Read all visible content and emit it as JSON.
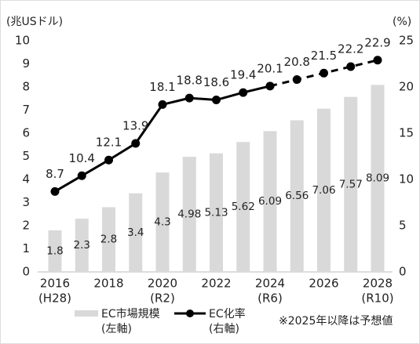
{
  "chart_data": {
    "type": "bar-line",
    "y_unit_label": "(兆USドル)",
    "y2_unit_label": "(%)",
    "categories": [
      "2016",
      null,
      "2018",
      null,
      "2020",
      null,
      "2022",
      null,
      "2024",
      null,
      "2026",
      null,
      "2028"
    ],
    "era_labels": [
      "(H28)",
      null,
      null,
      null,
      "(R2)",
      null,
      null,
      null,
      "(R6)",
      null,
      null,
      null,
      "(R10)"
    ],
    "series": [
      {
        "name": "EC市場規模",
        "axis_note": "(左軸)",
        "type": "bar",
        "color": "#d9d9d9",
        "values": [
          1.8,
          2.3,
          2.8,
          3.4,
          4.3,
          4.98,
          5.13,
          5.62,
          6.09,
          6.56,
          7.06,
          7.57,
          8.09
        ]
      },
      {
        "name": "EC化率",
        "axis_note": "(右軸)",
        "type": "line",
        "axis": "y2",
        "color": "#000000",
        "dashed_from": "2024",
        "values": [
          8.7,
          10.4,
          12.1,
          13.9,
          18.1,
          18.8,
          18.6,
          19.4,
          20.1,
          20.8,
          21.5,
          22.2,
          22.9
        ]
      }
    ],
    "ylim": [
      0,
      10
    ],
    "yticks": [
      0,
      1,
      2,
      3,
      4,
      5,
      6,
      7,
      8,
      9,
      10
    ],
    "y2lim": [
      0,
      25
    ],
    "y2ticks": [
      0,
      5,
      10,
      15,
      20,
      25
    ],
    "grid": false,
    "note": "※2025年以降は予想値"
  }
}
